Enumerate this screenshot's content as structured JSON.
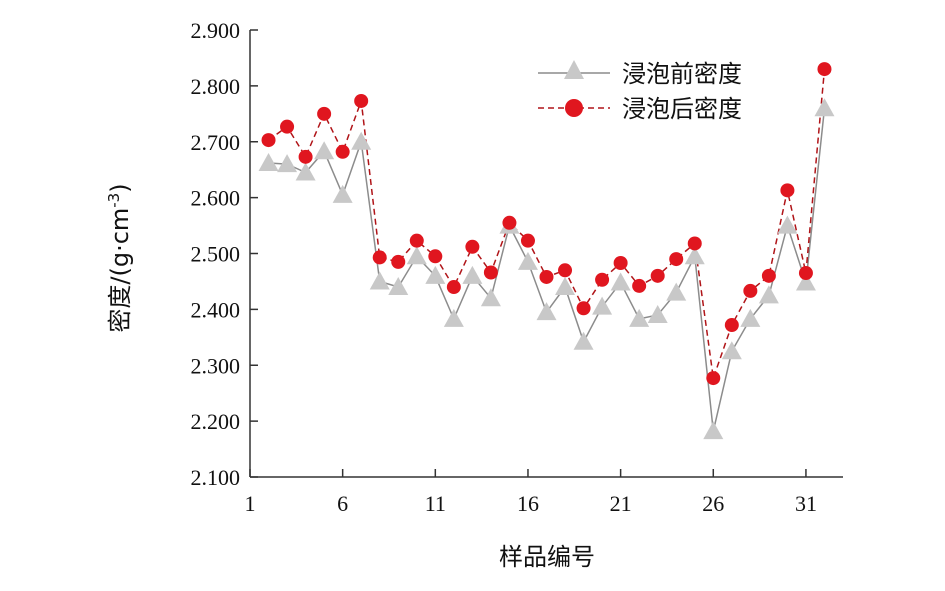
{
  "chart_data": {
    "type": "line",
    "x": [
      2,
      3,
      4,
      5,
      6,
      7,
      8,
      9,
      10,
      11,
      12,
      13,
      14,
      15,
      16,
      17,
      18,
      19,
      20,
      21,
      22,
      23,
      24,
      25,
      26,
      27,
      28,
      29,
      30,
      31,
      32
    ],
    "series": [
      {
        "name": "浸泡前密度",
        "marker": "triangle",
        "line_style": "solid",
        "color": "#c8c8c8",
        "line_color": "#8c8c8c",
        "values": [
          2.662,
          2.66,
          2.645,
          2.683,
          2.605,
          2.7,
          2.45,
          2.44,
          2.495,
          2.46,
          2.383,
          2.46,
          2.42,
          2.55,
          2.485,
          2.395,
          2.44,
          2.342,
          2.405,
          2.448,
          2.383,
          2.39,
          2.43,
          2.495,
          2.182,
          2.325,
          2.383,
          2.425,
          2.55,
          2.448,
          2.76
        ]
      },
      {
        "name": "浸泡后密度",
        "marker": "circle",
        "line_style": "dashed",
        "color": "#e0161f",
        "line_color": "#b01418",
        "values": [
          2.703,
          2.727,
          2.673,
          2.75,
          2.682,
          2.773,
          2.493,
          2.485,
          2.523,
          2.495,
          2.44,
          2.512,
          2.466,
          2.555,
          2.523,
          2.458,
          2.47,
          2.402,
          2.453,
          2.483,
          2.442,
          2.46,
          2.49,
          2.518,
          2.277,
          2.372,
          2.433,
          2.46,
          2.613,
          2.465,
          2.83
        ]
      }
    ],
    "xlabel": "样品编号",
    "ylabel_main": "密度/(g·cm",
    "ylabel_sup": "-3",
    "ylabel_close": ")",
    "xlim": [
      1,
      33
    ],
    "ylim": [
      2.1,
      2.9
    ],
    "x_ticks": [
      1,
      6,
      11,
      16,
      21,
      26,
      31
    ],
    "x_tick_labels": [
      "1",
      "6",
      "11",
      "16",
      "21",
      "26",
      "31"
    ],
    "y_ticks": [
      2.1,
      2.2,
      2.3,
      2.4,
      2.5,
      2.6,
      2.7,
      2.8,
      2.9
    ],
    "y_tick_labels": [
      "2.100",
      "2.200",
      "2.300",
      "2.400",
      "2.500",
      "2.600",
      "2.700",
      "2.800",
      "2.900"
    ],
    "grid": false,
    "legend_position": "top-right"
  }
}
